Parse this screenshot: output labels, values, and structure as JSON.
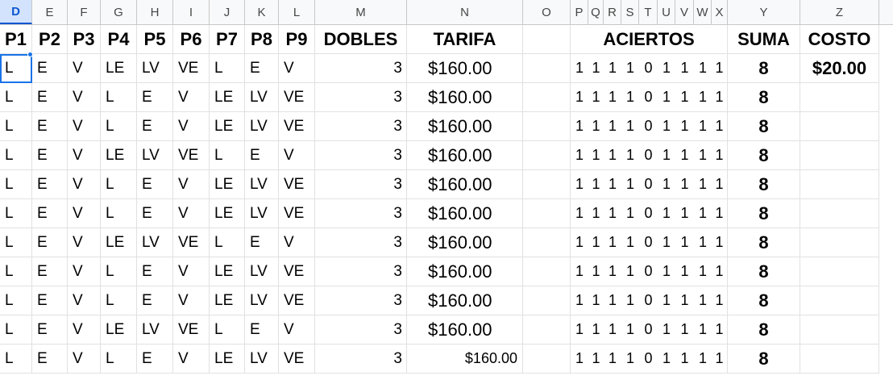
{
  "columns": [
    "D",
    "E",
    "F",
    "G",
    "H",
    "I",
    "J",
    "K",
    "L",
    "M",
    "N",
    "O",
    "P",
    "Q",
    "R",
    "S",
    "T",
    "U",
    "V",
    "W",
    "X",
    "Y",
    "Z"
  ],
  "header": {
    "p": [
      "P1",
      "P2",
      "P3",
      "P4",
      "P5",
      "P6",
      "P7",
      "P8",
      "P9"
    ],
    "dobles": "DOBLES",
    "tarifa": "TARIFA",
    "aciertos": "ACIERTOS",
    "suma": "SUMA",
    "costo": "COSTO"
  },
  "rows": [
    {
      "p": [
        "L",
        "E",
        "V",
        "LE",
        "LV",
        "VE",
        "L",
        "E",
        "V"
      ],
      "dobles": "3",
      "tarifa": "$160.00",
      "aciertos": [
        "1",
        "1",
        "1",
        "1",
        "0",
        "1",
        "1",
        "1",
        "1"
      ],
      "suma": "8",
      "costo": "$20.00"
    },
    {
      "p": [
        "L",
        "E",
        "V",
        "L",
        "E",
        "V",
        "LE",
        "LV",
        "VE"
      ],
      "dobles": "3",
      "tarifa": "$160.00",
      "aciertos": [
        "1",
        "1",
        "1",
        "1",
        "0",
        "1",
        "1",
        "1",
        "1"
      ],
      "suma": "8",
      "costo": ""
    },
    {
      "p": [
        "L",
        "E",
        "V",
        "L",
        "E",
        "V",
        "LE",
        "LV",
        "VE"
      ],
      "dobles": "3",
      "tarifa": "$160.00",
      "aciertos": [
        "1",
        "1",
        "1",
        "1",
        "0",
        "1",
        "1",
        "1",
        "1"
      ],
      "suma": "8",
      "costo": ""
    },
    {
      "p": [
        "L",
        "E",
        "V",
        "LE",
        "LV",
        "VE",
        "L",
        "E",
        "V"
      ],
      "dobles": "3",
      "tarifa": "$160.00",
      "aciertos": [
        "1",
        "1",
        "1",
        "1",
        "0",
        "1",
        "1",
        "1",
        "1"
      ],
      "suma": "8",
      "costo": ""
    },
    {
      "p": [
        "L",
        "E",
        "V",
        "L",
        "E",
        "V",
        "LE",
        "LV",
        "VE"
      ],
      "dobles": "3",
      "tarifa": "$160.00",
      "aciertos": [
        "1",
        "1",
        "1",
        "1",
        "0",
        "1",
        "1",
        "1",
        "1"
      ],
      "suma": "8",
      "costo": ""
    },
    {
      "p": [
        "L",
        "E",
        "V",
        "L",
        "E",
        "V",
        "LE",
        "LV",
        "VE"
      ],
      "dobles": "3",
      "tarifa": "$160.00",
      "aciertos": [
        "1",
        "1",
        "1",
        "1",
        "0",
        "1",
        "1",
        "1",
        "1"
      ],
      "suma": "8",
      "costo": ""
    },
    {
      "p": [
        "L",
        "E",
        "V",
        "LE",
        "LV",
        "VE",
        "L",
        "E",
        "V"
      ],
      "dobles": "3",
      "tarifa": "$160.00",
      "aciertos": [
        "1",
        "1",
        "1",
        "1",
        "0",
        "1",
        "1",
        "1",
        "1"
      ],
      "suma": "8",
      "costo": ""
    },
    {
      "p": [
        "L",
        "E",
        "V",
        "L",
        "E",
        "V",
        "LE",
        "LV",
        "VE"
      ],
      "dobles": "3",
      "tarifa": "$160.00",
      "aciertos": [
        "1",
        "1",
        "1",
        "1",
        "0",
        "1",
        "1",
        "1",
        "1"
      ],
      "suma": "8",
      "costo": ""
    },
    {
      "p": [
        "L",
        "E",
        "V",
        "L",
        "E",
        "V",
        "LE",
        "LV",
        "VE"
      ],
      "dobles": "3",
      "tarifa": "$160.00",
      "aciertos": [
        "1",
        "1",
        "1",
        "1",
        "0",
        "1",
        "1",
        "1",
        "1"
      ],
      "suma": "8",
      "costo": ""
    },
    {
      "p": [
        "L",
        "E",
        "V",
        "LE",
        "LV",
        "VE",
        "L",
        "E",
        "V"
      ],
      "dobles": "3",
      "tarifa": "$160.00",
      "aciertos": [
        "1",
        "1",
        "1",
        "1",
        "0",
        "1",
        "1",
        "1",
        "1"
      ],
      "suma": "8",
      "costo": ""
    },
    {
      "p": [
        "L",
        "E",
        "V",
        "L",
        "E",
        "V",
        "LE",
        "LV",
        "VE"
      ],
      "dobles": "3",
      "tarifa": "$160.00",
      "aciertos": [
        "1",
        "1",
        "1",
        "1",
        "0",
        "1",
        "1",
        "1",
        "1"
      ],
      "suma": "8",
      "costo": "",
      "tarifa_small": true
    }
  ],
  "selected_column": "D",
  "colors": {
    "selection": "#1a73e8",
    "header_bg": "#f8f9fa",
    "selected_header_bg": "#d3e3fd"
  }
}
